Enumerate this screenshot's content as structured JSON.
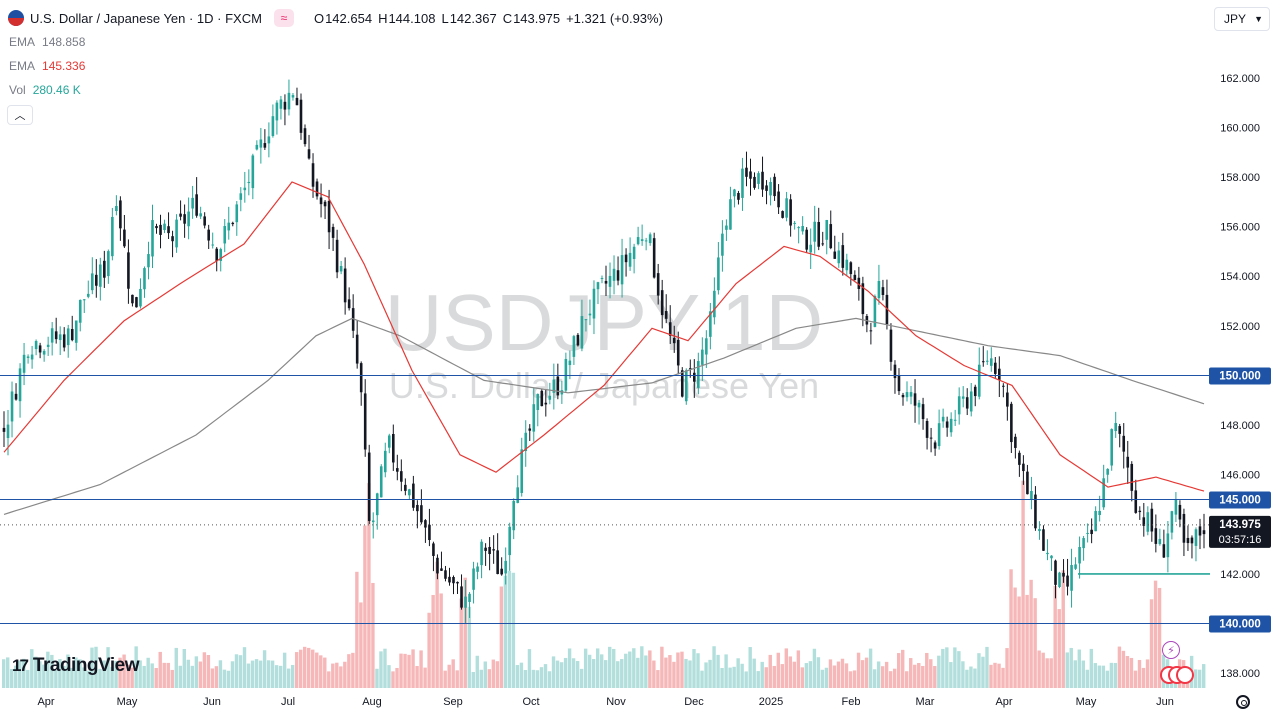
{
  "header": {
    "symbol_title": "U.S. Dollar / Japanese Yen · 1D · FXCM",
    "open_label": "O",
    "open": "142.654",
    "high_label": "H",
    "high": "144.108",
    "low_label": "L",
    "low": "142.367",
    "close_label": "C",
    "close": "143.975",
    "change": "+1.321 (+0.93%)",
    "currency": "JPY",
    "wave_icon": "wave-icon",
    "flag_icon": "us-jp-flag-icon"
  },
  "indicators": [
    {
      "name": "EMA",
      "value": "148.858",
      "color": "#787b86"
    },
    {
      "name": "EMA",
      "value": "145.336",
      "color": "#e53935"
    },
    {
      "name": "Vol",
      "value": "280.46 K",
      "color": "#26a69a"
    }
  ],
  "watermark": {
    "line1": "USDJPY 1D",
    "line2": "U.S. Dollar / Japanese Yen"
  },
  "branding": {
    "logo_mark": "17",
    "logo_text": "TradingView"
  },
  "price_axis": {
    "ticks": [
      "162.000",
      "160.000",
      "158.000",
      "156.000",
      "154.000",
      "152.000",
      "150.000",
      "148.000",
      "146.000",
      "144.000",
      "142.000",
      "140.000",
      "138.000"
    ]
  },
  "time_axis": {
    "labels": [
      "Apr",
      "May",
      "Jun",
      "Jul",
      "Aug",
      "Sep",
      "Oct",
      "Nov",
      "Dec",
      "2025",
      "Feb",
      "Mar",
      "Apr",
      "May",
      "Jun"
    ]
  },
  "price_labels": [
    {
      "name": "level-150",
      "value": "150.000"
    },
    {
      "name": "level-145",
      "value": "145.000"
    },
    {
      "name": "level-140",
      "value": "140.000"
    },
    {
      "name": "last-price",
      "value": "143.975",
      "countdown": "03:57:16"
    }
  ],
  "colors": {
    "up": "#26a69a",
    "down": "#131722",
    "ema_fast": "#e53935",
    "ema_slow": "#888888",
    "hline": "#1e53a6",
    "support": "#26a69a",
    "vol_up": "#b2dfdb",
    "vol_down": "#f5b7b7"
  },
  "chart_data": {
    "type": "candlestick",
    "title": "USDJPY 1D",
    "ylim": [
      137.4,
      163.2
    ],
    "last_price": 143.975,
    "horizontal_levels": [
      150.0,
      145.0,
      140.0
    ],
    "support_line": {
      "value": 142.0,
      "from": "May",
      "to": "Jun"
    },
    "price_path": [
      {
        "t": 0.0,
        "v": 147.8
      },
      {
        "t": 0.02,
        "v": 151.3
      },
      {
        "t": 0.055,
        "v": 151.6
      },
      {
        "t": 0.065,
        "v": 153.0
      },
      {
        "t": 0.085,
        "v": 154.4
      },
      {
        "t": 0.093,
        "v": 157.6
      },
      {
        "t": 0.108,
        "v": 152.4
      },
      {
        "t": 0.122,
        "v": 155.8
      },
      {
        "t": 0.14,
        "v": 155.5
      },
      {
        "t": 0.16,
        "v": 157.0
      },
      {
        "t": 0.178,
        "v": 155.0
      },
      {
        "t": 0.2,
        "v": 157.4
      },
      {
        "t": 0.225,
        "v": 160.6
      },
      {
        "t": 0.242,
        "v": 161.6
      },
      {
        "t": 0.255,
        "v": 158.0
      },
      {
        "t": 0.27,
        "v": 156.2
      },
      {
        "t": 0.285,
        "v": 153.2
      },
      {
        "t": 0.297,
        "v": 149.6
      },
      {
        "t": 0.305,
        "v": 143.5
      },
      {
        "t": 0.32,
        "v": 147.2
      },
      {
        "t": 0.345,
        "v": 144.5
      },
      {
        "t": 0.36,
        "v": 142.4
      },
      {
        "t": 0.385,
        "v": 140.8
      },
      {
        "t": 0.4,
        "v": 143.2
      },
      {
        "t": 0.415,
        "v": 142.0
      },
      {
        "t": 0.425,
        "v": 145.5
      },
      {
        "t": 0.445,
        "v": 148.9
      },
      {
        "t": 0.465,
        "v": 149.8
      },
      {
        "t": 0.485,
        "v": 152.5
      },
      {
        "t": 0.5,
        "v": 153.6
      },
      {
        "t": 0.515,
        "v": 154.4
      },
      {
        "t": 0.535,
        "v": 156.0
      },
      {
        "t": 0.55,
        "v": 152.4
      },
      {
        "t": 0.565,
        "v": 149.6
      },
      {
        "t": 0.578,
        "v": 150.3
      },
      {
        "t": 0.59,
        "v": 152.3
      },
      {
        "t": 0.6,
        "v": 156.3
      },
      {
        "t": 0.615,
        "v": 157.8
      },
      {
        "t": 0.635,
        "v": 158.0
      },
      {
        "t": 0.65,
        "v": 156.8
      },
      {
        "t": 0.665,
        "v": 155.5
      },
      {
        "t": 0.685,
        "v": 155.8
      },
      {
        "t": 0.705,
        "v": 154.2
      },
      {
        "t": 0.72,
        "v": 152.0
      },
      {
        "t": 0.73,
        "v": 153.4
      },
      {
        "t": 0.745,
        "v": 149.5
      },
      {
        "t": 0.76,
        "v": 148.8
      },
      {
        "t": 0.775,
        "v": 147.4
      },
      {
        "t": 0.79,
        "v": 148.2
      },
      {
        "t": 0.81,
        "v": 149.6
      },
      {
        "t": 0.82,
        "v": 150.8
      },
      {
        "t": 0.83,
        "v": 150.2
      },
      {
        "t": 0.845,
        "v": 146.4
      },
      {
        "t": 0.855,
        "v": 145.0
      },
      {
        "t": 0.865,
        "v": 143.3
      },
      {
        "t": 0.878,
        "v": 141.6
      },
      {
        "t": 0.885,
        "v": 141.3
      },
      {
        "t": 0.895,
        "v": 142.8
      },
      {
        "t": 0.905,
        "v": 143.3
      },
      {
        "t": 0.915,
        "v": 145.3
      },
      {
        "t": 0.925,
        "v": 148.0
      },
      {
        "t": 0.935,
        "v": 146.6
      },
      {
        "t": 0.945,
        "v": 144.6
      },
      {
        "t": 0.955,
        "v": 143.9
      },
      {
        "t": 0.965,
        "v": 142.8
      },
      {
        "t": 0.975,
        "v": 144.8
      },
      {
        "t": 0.985,
        "v": 142.7
      },
      {
        "t": 1.0,
        "v": 143.975
      }
    ],
    "ema_fast_path": [
      {
        "t": 0.0,
        "v": 146.9
      },
      {
        "t": 0.05,
        "v": 149.8
      },
      {
        "t": 0.1,
        "v": 152.2
      },
      {
        "t": 0.15,
        "v": 153.8
      },
      {
        "t": 0.2,
        "v": 155.3
      },
      {
        "t": 0.24,
        "v": 157.8
      },
      {
        "t": 0.27,
        "v": 157.2
      },
      {
        "t": 0.3,
        "v": 154.5
      },
      {
        "t": 0.34,
        "v": 150.2
      },
      {
        "t": 0.38,
        "v": 146.8
      },
      {
        "t": 0.41,
        "v": 146.1
      },
      {
        "t": 0.45,
        "v": 147.6
      },
      {
        "t": 0.5,
        "v": 149.6
      },
      {
        "t": 0.54,
        "v": 151.9
      },
      {
        "t": 0.57,
        "v": 151.4
      },
      {
        "t": 0.61,
        "v": 153.7
      },
      {
        "t": 0.65,
        "v": 155.2
      },
      {
        "t": 0.68,
        "v": 154.8
      },
      {
        "t": 0.72,
        "v": 153.4
      },
      {
        "t": 0.76,
        "v": 151.6
      },
      {
        "t": 0.8,
        "v": 150.4
      },
      {
        "t": 0.84,
        "v": 149.6
      },
      {
        "t": 0.88,
        "v": 146.8
      },
      {
        "t": 0.92,
        "v": 145.5
      },
      {
        "t": 0.96,
        "v": 145.9
      },
      {
        "t": 1.0,
        "v": 145.336
      }
    ],
    "ema_slow_path": [
      {
        "t": 0.0,
        "v": 144.4
      },
      {
        "t": 0.08,
        "v": 145.6
      },
      {
        "t": 0.16,
        "v": 147.6
      },
      {
        "t": 0.22,
        "v": 149.8
      },
      {
        "t": 0.26,
        "v": 151.6
      },
      {
        "t": 0.29,
        "v": 152.3
      },
      {
        "t": 0.33,
        "v": 151.6
      },
      {
        "t": 0.4,
        "v": 149.8
      },
      {
        "t": 0.47,
        "v": 149.3
      },
      {
        "t": 0.54,
        "v": 149.7
      },
      {
        "t": 0.6,
        "v": 150.7
      },
      {
        "t": 0.66,
        "v": 151.9
      },
      {
        "t": 0.71,
        "v": 152.3
      },
      {
        "t": 0.76,
        "v": 151.8
      },
      {
        "t": 0.82,
        "v": 151.2
      },
      {
        "t": 0.88,
        "v": 150.8
      },
      {
        "t": 0.94,
        "v": 149.8
      },
      {
        "t": 1.0,
        "v": 148.858
      }
    ]
  }
}
